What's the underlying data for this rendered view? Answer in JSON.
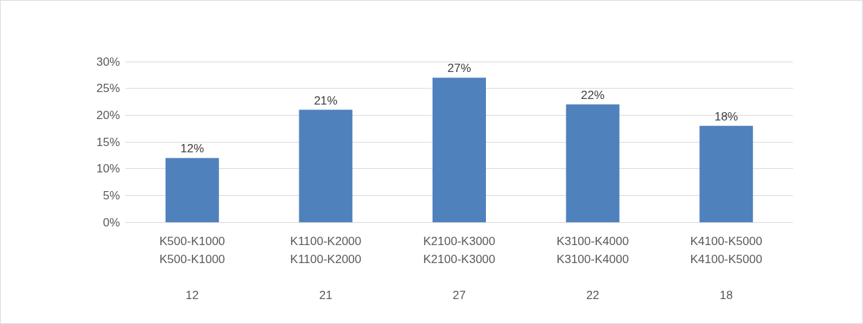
{
  "chart_data": {
    "type": "bar",
    "categories": [
      "K500-K1000\nK500-K1000\n\n12",
      "K1100-K2000\nK1100-K2000\n\n21",
      "K2100-K3000\nK2100-K3000\n\n27",
      "K3100-K4000\nK3100-K4000\n\n22",
      "K4100-K5000\nK4100-K5000\n\n18"
    ],
    "values": [
      12,
      21,
      27,
      22,
      18
    ],
    "value_labels": [
      "12%",
      "21%",
      "27%",
      "22%",
      "18%"
    ],
    "color": "#4f81bd",
    "ylim": [
      0,
      30
    ],
    "yticks": [
      {
        "value": 0,
        "label": "0%"
      },
      {
        "value": 5,
        "label": "5%"
      },
      {
        "value": 10,
        "label": "10%"
      },
      {
        "value": 15,
        "label": "15%"
      },
      {
        "value": 20,
        "label": "20%"
      },
      {
        "value": 25,
        "label": "25%"
      },
      {
        "value": 30,
        "label": "30%"
      }
    ],
    "grid": true
  }
}
